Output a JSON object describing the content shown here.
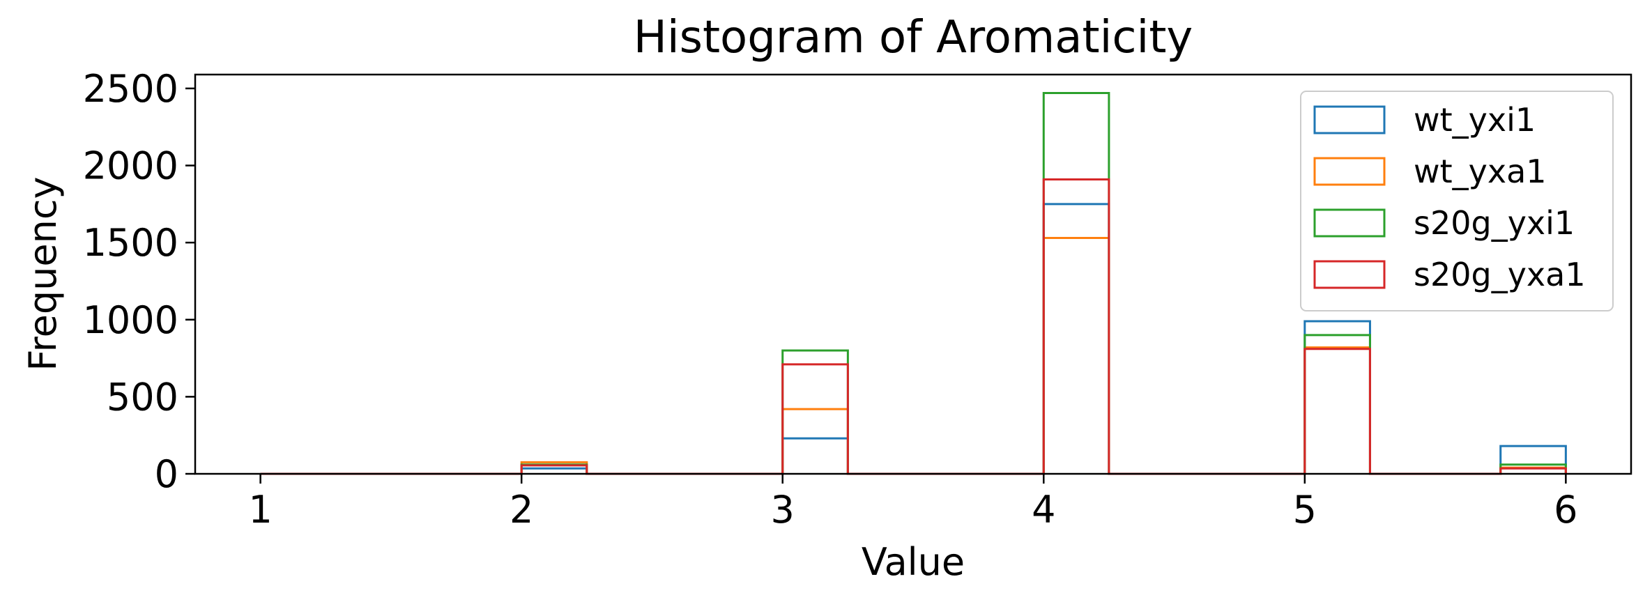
{
  "chart_data": {
    "type": "bar",
    "histtype": "step",
    "title": "Histogram of Aromaticity",
    "xlabel": "Value",
    "ylabel": "Frequency",
    "xlim": [
      0.75,
      6.25
    ],
    "ylim": [
      0,
      2590
    ],
    "xticks": [
      1,
      2,
      3,
      4,
      5,
      6
    ],
    "yticks": [
      0,
      500,
      1000,
      1500,
      2000,
      2500
    ],
    "bins": [
      [
        1.0,
        1.25
      ],
      [
        2.0,
        2.25
      ],
      [
        3.0,
        3.25
      ],
      [
        4.0,
        4.25
      ],
      [
        5.0,
        5.25
      ],
      [
        5.75,
        6.0
      ]
    ],
    "legend_position": "top-right",
    "grid": false,
    "series": [
      {
        "name": "wt_yxi1",
        "color": "#1f77b4",
        "values": [
          0,
          35,
          230,
          1750,
          990,
          180
        ]
      },
      {
        "name": "wt_yxa1",
        "color": "#ff7f0e",
        "values": [
          0,
          75,
          420,
          1530,
          820,
          40
        ]
      },
      {
        "name": "s20g_yxi1",
        "color": "#2ca02c",
        "values": [
          0,
          60,
          800,
          2470,
          900,
          60
        ]
      },
      {
        "name": "s20g_yxa1",
        "color": "#d62728",
        "values": [
          0,
          55,
          710,
          1910,
          810,
          35
        ]
      }
    ]
  }
}
